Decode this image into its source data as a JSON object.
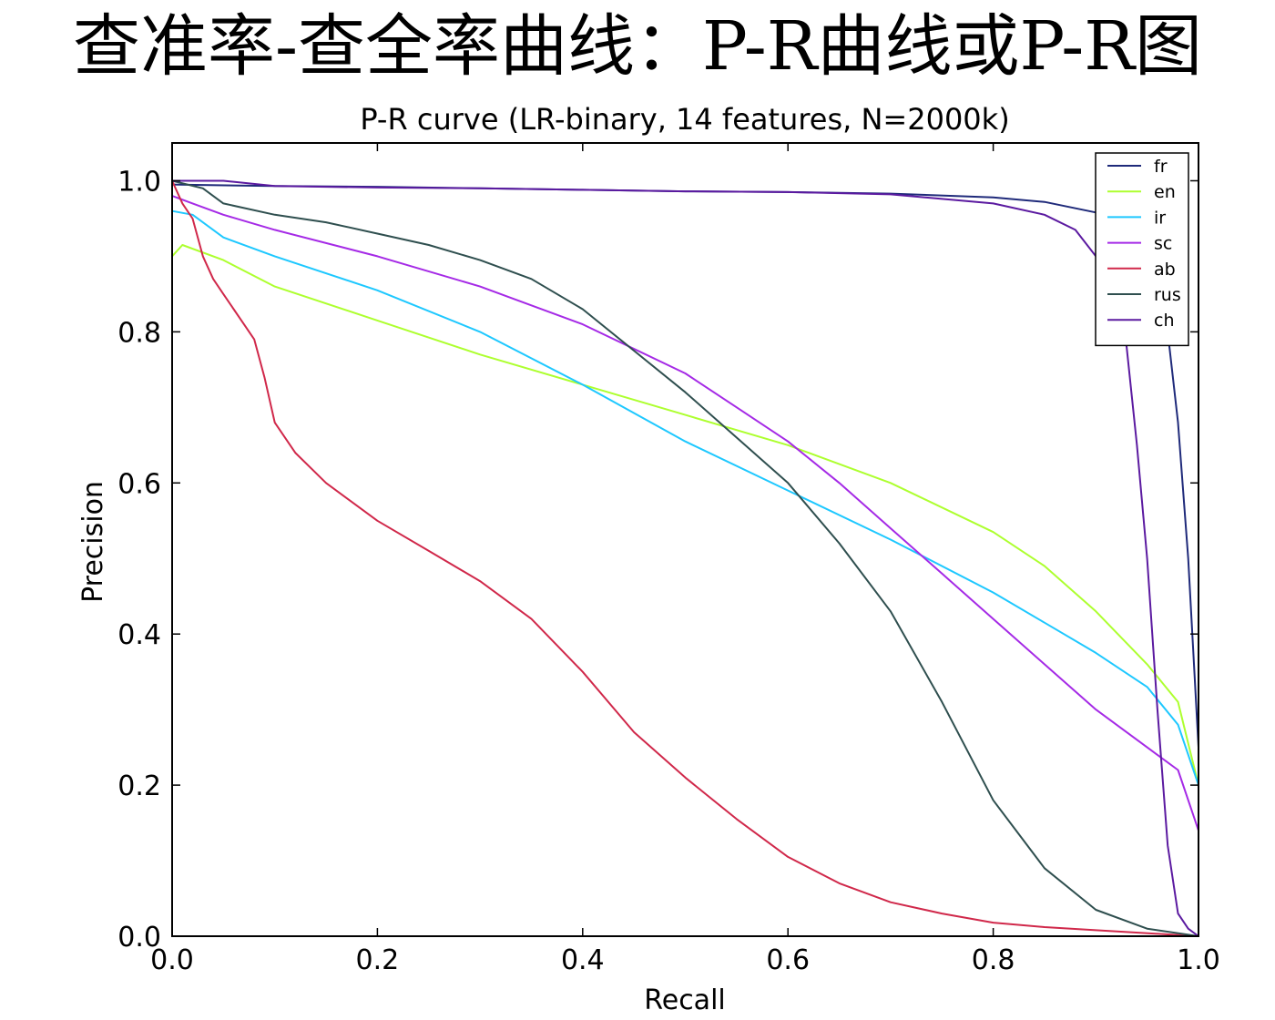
{
  "slide": {
    "heading": "查准率-查全率曲线：P-R曲线或P-R图"
  },
  "chart_data": {
    "type": "line",
    "title": "P-R curve (LR-binary, 14 features, N=2000k)",
    "xlabel": "Recall",
    "ylabel": "Precision",
    "xlim": [
      0.0,
      1.0
    ],
    "ylim": [
      0.0,
      1.05
    ],
    "x_ticks": [
      "0.0",
      "0.2",
      "0.4",
      "0.6",
      "0.8",
      "1.0"
    ],
    "y_ticks": [
      "0.0",
      "0.2",
      "0.4",
      "0.6",
      "0.8",
      "1.0"
    ],
    "grid": false,
    "legend_position": "top-right",
    "series": [
      {
        "name": "fr",
        "color": "#1f2a7a",
        "points": [
          [
            0.0,
            0.995
          ],
          [
            0.1,
            0.993
          ],
          [
            0.2,
            0.992
          ],
          [
            0.3,
            0.99
          ],
          [
            0.4,
            0.988
          ],
          [
            0.5,
            0.986
          ],
          [
            0.6,
            0.985
          ],
          [
            0.7,
            0.983
          ],
          [
            0.8,
            0.978
          ],
          [
            0.85,
            0.972
          ],
          [
            0.9,
            0.958
          ],
          [
            0.93,
            0.94
          ],
          [
            0.95,
            0.91
          ],
          [
            0.96,
            0.87
          ],
          [
            0.97,
            0.8
          ],
          [
            0.98,
            0.68
          ],
          [
            0.99,
            0.5
          ],
          [
            1.0,
            0.25
          ],
          [
            1.0,
            0.0
          ]
        ]
      },
      {
        "name": "en",
        "color": "#adff2f",
        "points": [
          [
            0.0,
            0.9
          ],
          [
            0.01,
            0.915
          ],
          [
            0.05,
            0.895
          ],
          [
            0.1,
            0.86
          ],
          [
            0.2,
            0.815
          ],
          [
            0.3,
            0.77
          ],
          [
            0.4,
            0.73
          ],
          [
            0.5,
            0.69
          ],
          [
            0.6,
            0.65
          ],
          [
            0.7,
            0.6
          ],
          [
            0.8,
            0.535
          ],
          [
            0.85,
            0.49
          ],
          [
            0.9,
            0.43
          ],
          [
            0.95,
            0.36
          ],
          [
            0.98,
            0.31
          ],
          [
            1.0,
            0.2
          ]
        ]
      },
      {
        "name": "ir",
        "color": "#1ec8ff",
        "points": [
          [
            0.0,
            0.96
          ],
          [
            0.02,
            0.955
          ],
          [
            0.05,
            0.925
          ],
          [
            0.1,
            0.9
          ],
          [
            0.2,
            0.855
          ],
          [
            0.3,
            0.8
          ],
          [
            0.4,
            0.73
          ],
          [
            0.5,
            0.655
          ],
          [
            0.6,
            0.59
          ],
          [
            0.7,
            0.525
          ],
          [
            0.8,
            0.455
          ],
          [
            0.85,
            0.415
          ],
          [
            0.9,
            0.375
          ],
          [
            0.95,
            0.33
          ],
          [
            0.98,
            0.28
          ],
          [
            1.0,
            0.2
          ]
        ]
      },
      {
        "name": "sc",
        "color": "#a52ae6",
        "points": [
          [
            0.0,
            0.98
          ],
          [
            0.02,
            0.97
          ],
          [
            0.05,
            0.955
          ],
          [
            0.1,
            0.935
          ],
          [
            0.2,
            0.9
          ],
          [
            0.3,
            0.86
          ],
          [
            0.4,
            0.81
          ],
          [
            0.5,
            0.745
          ],
          [
            0.55,
            0.7
          ],
          [
            0.6,
            0.655
          ],
          [
            0.65,
            0.6
          ],
          [
            0.7,
            0.54
          ],
          [
            0.75,
            0.48
          ],
          [
            0.8,
            0.42
          ],
          [
            0.85,
            0.36
          ],
          [
            0.9,
            0.3
          ],
          [
            0.95,
            0.25
          ],
          [
            0.98,
            0.22
          ],
          [
            1.0,
            0.14
          ]
        ]
      },
      {
        "name": "ab",
        "color": "#d0284a",
        "points": [
          [
            0.0,
            1.0
          ],
          [
            0.01,
            0.97
          ],
          [
            0.02,
            0.95
          ],
          [
            0.03,
            0.9
          ],
          [
            0.04,
            0.87
          ],
          [
            0.05,
            0.85
          ],
          [
            0.06,
            0.83
          ],
          [
            0.07,
            0.81
          ],
          [
            0.08,
            0.79
          ],
          [
            0.09,
            0.74
          ],
          [
            0.1,
            0.68
          ],
          [
            0.12,
            0.64
          ],
          [
            0.15,
            0.6
          ],
          [
            0.2,
            0.55
          ],
          [
            0.25,
            0.51
          ],
          [
            0.3,
            0.47
          ],
          [
            0.35,
            0.42
          ],
          [
            0.4,
            0.35
          ],
          [
            0.45,
            0.27
          ],
          [
            0.5,
            0.21
          ],
          [
            0.55,
            0.155
          ],
          [
            0.6,
            0.105
          ],
          [
            0.65,
            0.07
          ],
          [
            0.7,
            0.045
          ],
          [
            0.75,
            0.03
          ],
          [
            0.8,
            0.018
          ],
          [
            0.85,
            0.012
          ],
          [
            0.9,
            0.008
          ],
          [
            1.0,
            0.0
          ]
        ]
      },
      {
        "name": "rus",
        "color": "#2f4f4f",
        "points": [
          [
            0.0,
            1.0
          ],
          [
            0.03,
            0.99
          ],
          [
            0.05,
            0.97
          ],
          [
            0.1,
            0.955
          ],
          [
            0.15,
            0.945
          ],
          [
            0.2,
            0.93
          ],
          [
            0.25,
            0.915
          ],
          [
            0.3,
            0.895
          ],
          [
            0.35,
            0.87
          ],
          [
            0.4,
            0.83
          ],
          [
            0.45,
            0.775
          ],
          [
            0.5,
            0.72
          ],
          [
            0.55,
            0.66
          ],
          [
            0.6,
            0.6
          ],
          [
            0.65,
            0.52
          ],
          [
            0.7,
            0.43
          ],
          [
            0.75,
            0.31
          ],
          [
            0.8,
            0.18
          ],
          [
            0.85,
            0.09
          ],
          [
            0.9,
            0.035
          ],
          [
            0.95,
            0.01
          ],
          [
            1.0,
            0.0
          ]
        ]
      },
      {
        "name": "ch",
        "color": "#5b1aa0",
        "points": [
          [
            0.0,
            1.0
          ],
          [
            0.05,
            1.0
          ],
          [
            0.1,
            0.993
          ],
          [
            0.2,
            0.991
          ],
          [
            0.3,
            0.99
          ],
          [
            0.4,
            0.988
          ],
          [
            0.5,
            0.986
          ],
          [
            0.6,
            0.985
          ],
          [
            0.7,
            0.982
          ],
          [
            0.8,
            0.97
          ],
          [
            0.85,
            0.955
          ],
          [
            0.88,
            0.935
          ],
          [
            0.9,
            0.9
          ],
          [
            0.92,
            0.85
          ],
          [
            0.93,
            0.78
          ],
          [
            0.94,
            0.65
          ],
          [
            0.95,
            0.5
          ],
          [
            0.96,
            0.3
          ],
          [
            0.97,
            0.12
          ],
          [
            0.98,
            0.03
          ],
          [
            0.99,
            0.01
          ],
          [
            1.0,
            0.0
          ]
        ]
      }
    ]
  }
}
